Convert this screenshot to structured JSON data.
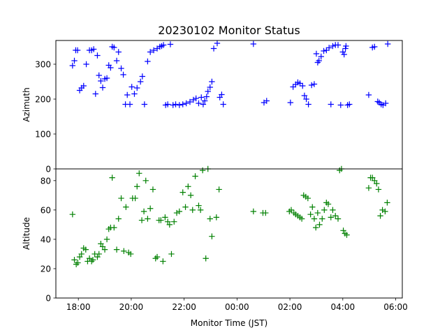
{
  "chart_data": {
    "type": "scatter",
    "title": "20230102 Monitor Status",
    "xlabel": "Monitor Time (JST)",
    "marker": "+",
    "x_ticks": [
      "18:00",
      "20:00",
      "22:00",
      "00:00",
      "02:00",
      "04:00",
      "06:00"
    ],
    "x_tick_hours": [
      18,
      20,
      22,
      24,
      26,
      28,
      30
    ],
    "xlim_hours": [
      17.15,
      30.25
    ],
    "panels": [
      {
        "ylabel": "Azimuth",
        "ylim": [
          0,
          368
        ],
        "y_ticks": [
          0,
          100,
          200,
          300
        ],
        "color": "#0000ff",
        "series": [
          {
            "x": [
              17.78,
              17.85,
              17.9,
              17.97,
              18.05,
              18.12,
              18.2,
              18.3,
              18.42,
              18.5,
              18.58,
              18.65,
              18.72,
              18.78,
              18.85,
              18.92,
              19.0,
              19.08,
              19.15,
              19.22,
              19.28,
              19.35,
              19.45,
              19.52,
              19.62,
              19.7,
              19.78,
              19.85,
              19.95,
              20.02,
              20.12,
              20.22,
              20.35,
              20.42,
              20.5,
              20.62,
              20.72,
              20.85,
              20.98,
              21.08,
              21.15,
              21.22,
              21.3,
              21.38,
              21.48,
              21.58,
              21.68,
              21.82,
              21.95,
              22.08,
              22.22,
              22.35,
              22.45,
              22.55,
              22.65,
              22.72,
              22.78,
              22.85,
              22.9,
              22.98,
              23.05,
              23.12,
              23.25,
              23.35,
              23.42,
              23.48,
              24.62,
              25.02,
              25.12,
              26.02,
              26.12,
              26.22,
              26.3,
              26.38,
              26.48,
              26.55,
              26.62,
              26.7,
              26.82,
              26.92,
              27.0,
              27.05,
              27.1,
              27.18,
              27.28,
              27.38,
              27.48,
              27.55,
              27.62,
              27.72,
              27.82,
              27.92,
              28.0,
              28.05,
              28.1,
              28.12,
              28.18,
              28.25,
              28.98,
              29.12,
              29.2,
              29.32,
              29.38,
              29.45,
              29.52,
              29.62,
              29.7
            ],
            "y": [
              296,
              310,
              340,
              340,
              225,
              232,
              238,
              300,
              340,
              340,
              343,
              215,
              325,
              268,
              252,
              233,
              258,
              260,
              297,
              290,
              350,
              348,
              310,
              335,
              288,
              270,
              185,
              212,
              185,
              235,
              215,
              232,
              250,
              265,
              185,
              308,
              335,
              340,
              345,
              350,
              352,
              355,
              183,
              185,
              357,
              183,
              185,
              183,
              185,
              188,
              192,
              198,
              202,
              188,
              205,
              185,
              195,
              207,
              222,
              234,
              250,
              345,
              360,
              205,
              213,
              185,
              358,
              190,
              195,
              190,
              235,
              242,
              248,
              245,
              238,
              210,
              200,
              185,
              240,
              243,
              330,
              305,
              310,
              322,
              338,
              340,
              347,
              185,
              352,
              355,
              355,
              183,
              335,
              328,
              345,
              352,
              183,
              185,
              212,
              348,
              350,
              193,
              190,
              185,
              183,
              188,
              358
            ]
          }
        ]
      },
      {
        "ylabel": "Altitude",
        "ylim": [
          0,
          88
        ],
        "y_ticks": [
          0,
          20,
          40,
          60,
          80
        ],
        "color": "#008000",
        "series": [
          {
            "x": [
              17.78,
              17.85,
              17.92,
              17.98,
              18.05,
              18.12,
              18.2,
              18.28,
              18.35,
              18.42,
              18.5,
              18.55,
              18.62,
              18.72,
              18.78,
              18.85,
              18.92,
              19.0,
              19.08,
              19.15,
              19.22,
              19.28,
              19.35,
              19.45,
              19.52,
              19.62,
              19.72,
              19.8,
              19.9,
              19.98,
              20.05,
              20.15,
              20.22,
              20.3,
              20.4,
              20.48,
              20.55,
              20.62,
              20.72,
              20.82,
              20.92,
              20.98,
              21.05,
              21.12,
              21.2,
              21.28,
              21.38,
              21.45,
              21.52,
              21.62,
              21.72,
              21.82,
              21.95,
              22.05,
              22.15,
              22.25,
              22.32,
              22.42,
              22.55,
              22.62,
              22.7,
              22.82,
              22.9,
              22.98,
              23.05,
              23.22,
              23.32,
              24.62,
              24.98,
              25.08,
              25.98,
              26.05,
              26.15,
              26.22,
              26.3,
              26.38,
              26.45,
              26.52,
              26.6,
              26.68,
              26.78,
              26.85,
              26.92,
              26.98,
              27.05,
              27.12,
              27.22,
              27.3,
              27.38,
              27.45,
              27.55,
              27.62,
              27.72,
              27.82,
              27.88,
              27.95,
              28.02,
              28.08,
              28.15,
              28.98,
              29.05,
              29.12,
              29.2,
              29.28,
              29.35,
              29.42,
              29.5,
              29.6,
              29.68
            ],
            "y": [
              57,
              26,
              23,
              24,
              28,
              30,
              34,
              33,
              25,
              27,
              25,
              26,
              30,
              28,
              30,
              37,
              35,
              33,
              40,
              47,
              48,
              82,
              48,
              33,
              54,
              68,
              32,
              62,
              31,
              30,
              68,
              68,
              76,
              85,
              53,
              59,
              80,
              54,
              61,
              74,
              27,
              28,
              53,
              53,
              25,
              55,
              52,
              50,
              30,
              52,
              58,
              59,
              72,
              62,
              76,
              70,
              60,
              83,
              63,
              60,
              87,
              27,
              88,
              54,
              42,
              55,
              74,
              59,
              58,
              58,
              59,
              60,
              58,
              57,
              56,
              55,
              54,
              70,
              69,
              68,
              57,
              62,
              54,
              48,
              58,
              50,
              54,
              60,
              65,
              64,
              55,
              60,
              56,
              54,
              87,
              88,
              46,
              44,
              43,
              75,
              82,
              82,
              80,
              78,
              74,
              56,
              60,
              59,
              65
            ]
          }
        ]
      }
    ]
  }
}
